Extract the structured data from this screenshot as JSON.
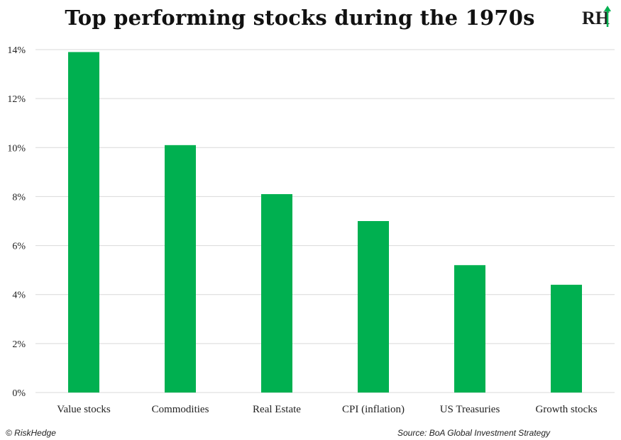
{
  "chart_data": {
    "type": "bar",
    "title": "Top performing stocks during the 1970s",
    "categories": [
      "Value stocks",
      "Commodities",
      "Real Estate",
      "CPI (inflation)",
      "US Treasuries",
      "Growth stocks"
    ],
    "values": [
      13.9,
      10.1,
      8.1,
      7.0,
      5.2,
      4.4
    ],
    "ylim": [
      0,
      14
    ],
    "yticks": [
      0,
      2,
      4,
      6,
      8,
      10,
      12,
      14
    ],
    "ytick_labels": [
      "0%",
      "2%",
      "4%",
      "6%",
      "8%",
      "10%",
      "12%",
      "14%"
    ],
    "xlabel": "",
    "ylabel": "",
    "grid": true,
    "legend": "none",
    "bar_color": "#00b050",
    "grid_color": "#d9d9d9"
  },
  "branding": {
    "logo_text": "RH",
    "logo_accent_color": "#00b050"
  },
  "footer": {
    "left": "© RiskHedge",
    "right": "Source: BoA Global Investment Strategy"
  }
}
